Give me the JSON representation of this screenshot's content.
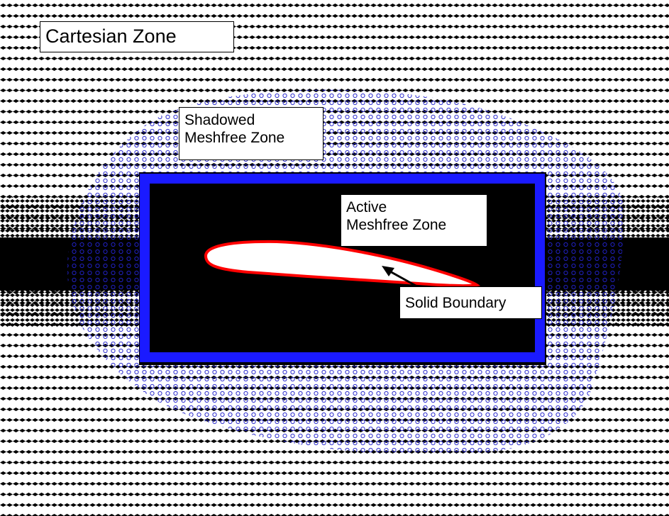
{
  "labels": {
    "cartesian_zone": "Cartesian Zone",
    "shadowed_zone": [
      "Shadowed",
      "Meshfree Zone"
    ],
    "active_zone": [
      "Active",
      "Meshfree Zone"
    ],
    "solid_boundary": "Solid Boundary"
  },
  "colors": {
    "background": "#ffffff",
    "cartesian_points": "#000000",
    "meshfree_points": "#2222cc",
    "boundary_frame": "#1a1aff",
    "solid_boundary": "#ff0000",
    "airfoil_fill": "#ffffff"
  }
}
